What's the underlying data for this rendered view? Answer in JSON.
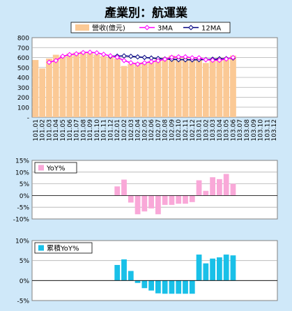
{
  "title": "產業別：航運業",
  "colors": {
    "background": "#cfe8f9",
    "plot_bg": "#ffffff",
    "revenue_bar": "#fbc995",
    "ma3": "#ff00ff",
    "ma12": "#000080",
    "yoy_bar": "#f9a8d8",
    "cum_yoy_bar": "#19c0e8"
  },
  "chart_data": [
    {
      "type": "bar",
      "subtype": "bar+line",
      "ylim": [
        0,
        800
      ],
      "y_ticks": [
        "800",
        "700",
        "600",
        "500",
        "400",
        "300",
        "200",
        "100",
        "-"
      ],
      "grid": true,
      "legend_position": "top",
      "categories": [
        "101.01",
        "101.02",
        "101.03",
        "101.04",
        "101.05",
        "101.06",
        "101.07",
        "101.08",
        "101.09",
        "101.10",
        "101.11",
        "101.12",
        "102.01",
        "102.02",
        "102.03",
        "102.04",
        "102.05",
        "102.06",
        "102.07",
        "102.08",
        "102.09",
        "102.10",
        "102.11",
        "102.12",
        "103.01",
        "103.02",
        "103.03",
        "103.04",
        "103.05",
        "103.06",
        "103.07",
        "103.08",
        "103.09",
        "103.10",
        "103.11",
        "103.12"
      ],
      "series": [
        {
          "name": "營收(億元)",
          "kind": "bar",
          "values": [
            575,
            490,
            590,
            628,
            620,
            640,
            650,
            660,
            650,
            630,
            615,
            605,
            590,
            515,
            535,
            550,
            555,
            565,
            585,
            600,
            620,
            600,
            600,
            590,
            600,
            545,
            575,
            600,
            580,
            620,
            null,
            null,
            null,
            null,
            null,
            null
          ]
        },
        {
          "name": "3MA",
          "kind": "line",
          "values": [
            null,
            null,
            552,
            569,
            613,
            629,
            637,
            650,
            653,
            647,
            632,
            617,
            603,
            570,
            547,
            533,
            547,
            557,
            568,
            583,
            602,
            607,
            607,
            597,
            597,
            578,
            573,
            573,
            585,
            600,
            null,
            null,
            null,
            null,
            null,
            null
          ]
        },
        {
          "name": "12MA",
          "kind": "line",
          "values": [
            null,
            null,
            null,
            null,
            null,
            null,
            null,
            null,
            null,
            null,
            null,
            613,
            614,
            616,
            612,
            606,
            601,
            595,
            590,
            585,
            582,
            579,
            578,
            577,
            578,
            580,
            583,
            587,
            589,
            595,
            null,
            null,
            null,
            null,
            null,
            null
          ]
        }
      ]
    },
    {
      "type": "bar",
      "ylim": [
        -10,
        15
      ],
      "y_ticks": [
        "15%",
        "10%",
        "5%",
        "0%",
        "-5%",
        "-10%"
      ],
      "grid": true,
      "legend_position": "top-left",
      "categories": [
        "101.01",
        "101.02",
        "101.03",
        "101.04",
        "101.05",
        "101.06",
        "101.07",
        "101.08",
        "101.09",
        "101.10",
        "101.11",
        "101.12",
        "102.01",
        "102.02",
        "102.03",
        "102.04",
        "102.05",
        "102.06",
        "102.07",
        "102.08",
        "102.09",
        "102.10",
        "102.11",
        "102.12",
        "103.01",
        "103.02",
        "103.03",
        "103.04",
        "103.05",
        "103.06",
        "103.07",
        "103.08",
        "103.09",
        "103.10",
        "103.11",
        "103.12"
      ],
      "series": [
        {
          "name": "YoY%",
          "values": [
            null,
            null,
            null,
            null,
            null,
            null,
            null,
            null,
            null,
            null,
            null,
            null,
            3.9,
            6.8,
            -3.0,
            -8.0,
            -6.8,
            -5.5,
            -8.0,
            -4.0,
            -4.0,
            -3.5,
            -3.5,
            -2.8,
            6.5,
            2.0,
            7.8,
            7.0,
            9.2,
            5.0,
            null,
            null,
            null,
            null,
            null,
            null
          ]
        }
      ]
    },
    {
      "type": "bar",
      "ylim": [
        -5,
        10
      ],
      "y_ticks": [
        "10%",
        "5%",
        "0%",
        "-5%"
      ],
      "grid": true,
      "legend_position": "top-left",
      "categories": [
        "101.01",
        "101.02",
        "101.03",
        "101.04",
        "101.05",
        "101.06",
        "101.07",
        "101.08",
        "101.09",
        "101.10",
        "101.11",
        "101.12",
        "102.01",
        "102.02",
        "102.03",
        "102.04",
        "102.05",
        "102.06",
        "102.07",
        "102.08",
        "102.09",
        "102.10",
        "102.11",
        "102.12",
        "103.01",
        "103.02",
        "103.03",
        "103.04",
        "103.05",
        "103.06",
        "103.07",
        "103.08",
        "103.09",
        "103.10",
        "103.11",
        "103.12"
      ],
      "series": [
        {
          "name": "累積YoY%",
          "values": [
            null,
            null,
            null,
            null,
            null,
            null,
            null,
            null,
            null,
            null,
            null,
            null,
            3.9,
            5.3,
            2.4,
            -0.6,
            -1.9,
            -2.5,
            -3.2,
            -3.3,
            -3.3,
            -3.3,
            -3.3,
            -3.3,
            6.5,
            4.3,
            5.5,
            5.8,
            6.5,
            6.3,
            null,
            null,
            null,
            null,
            null,
            null
          ]
        }
      ]
    }
  ]
}
